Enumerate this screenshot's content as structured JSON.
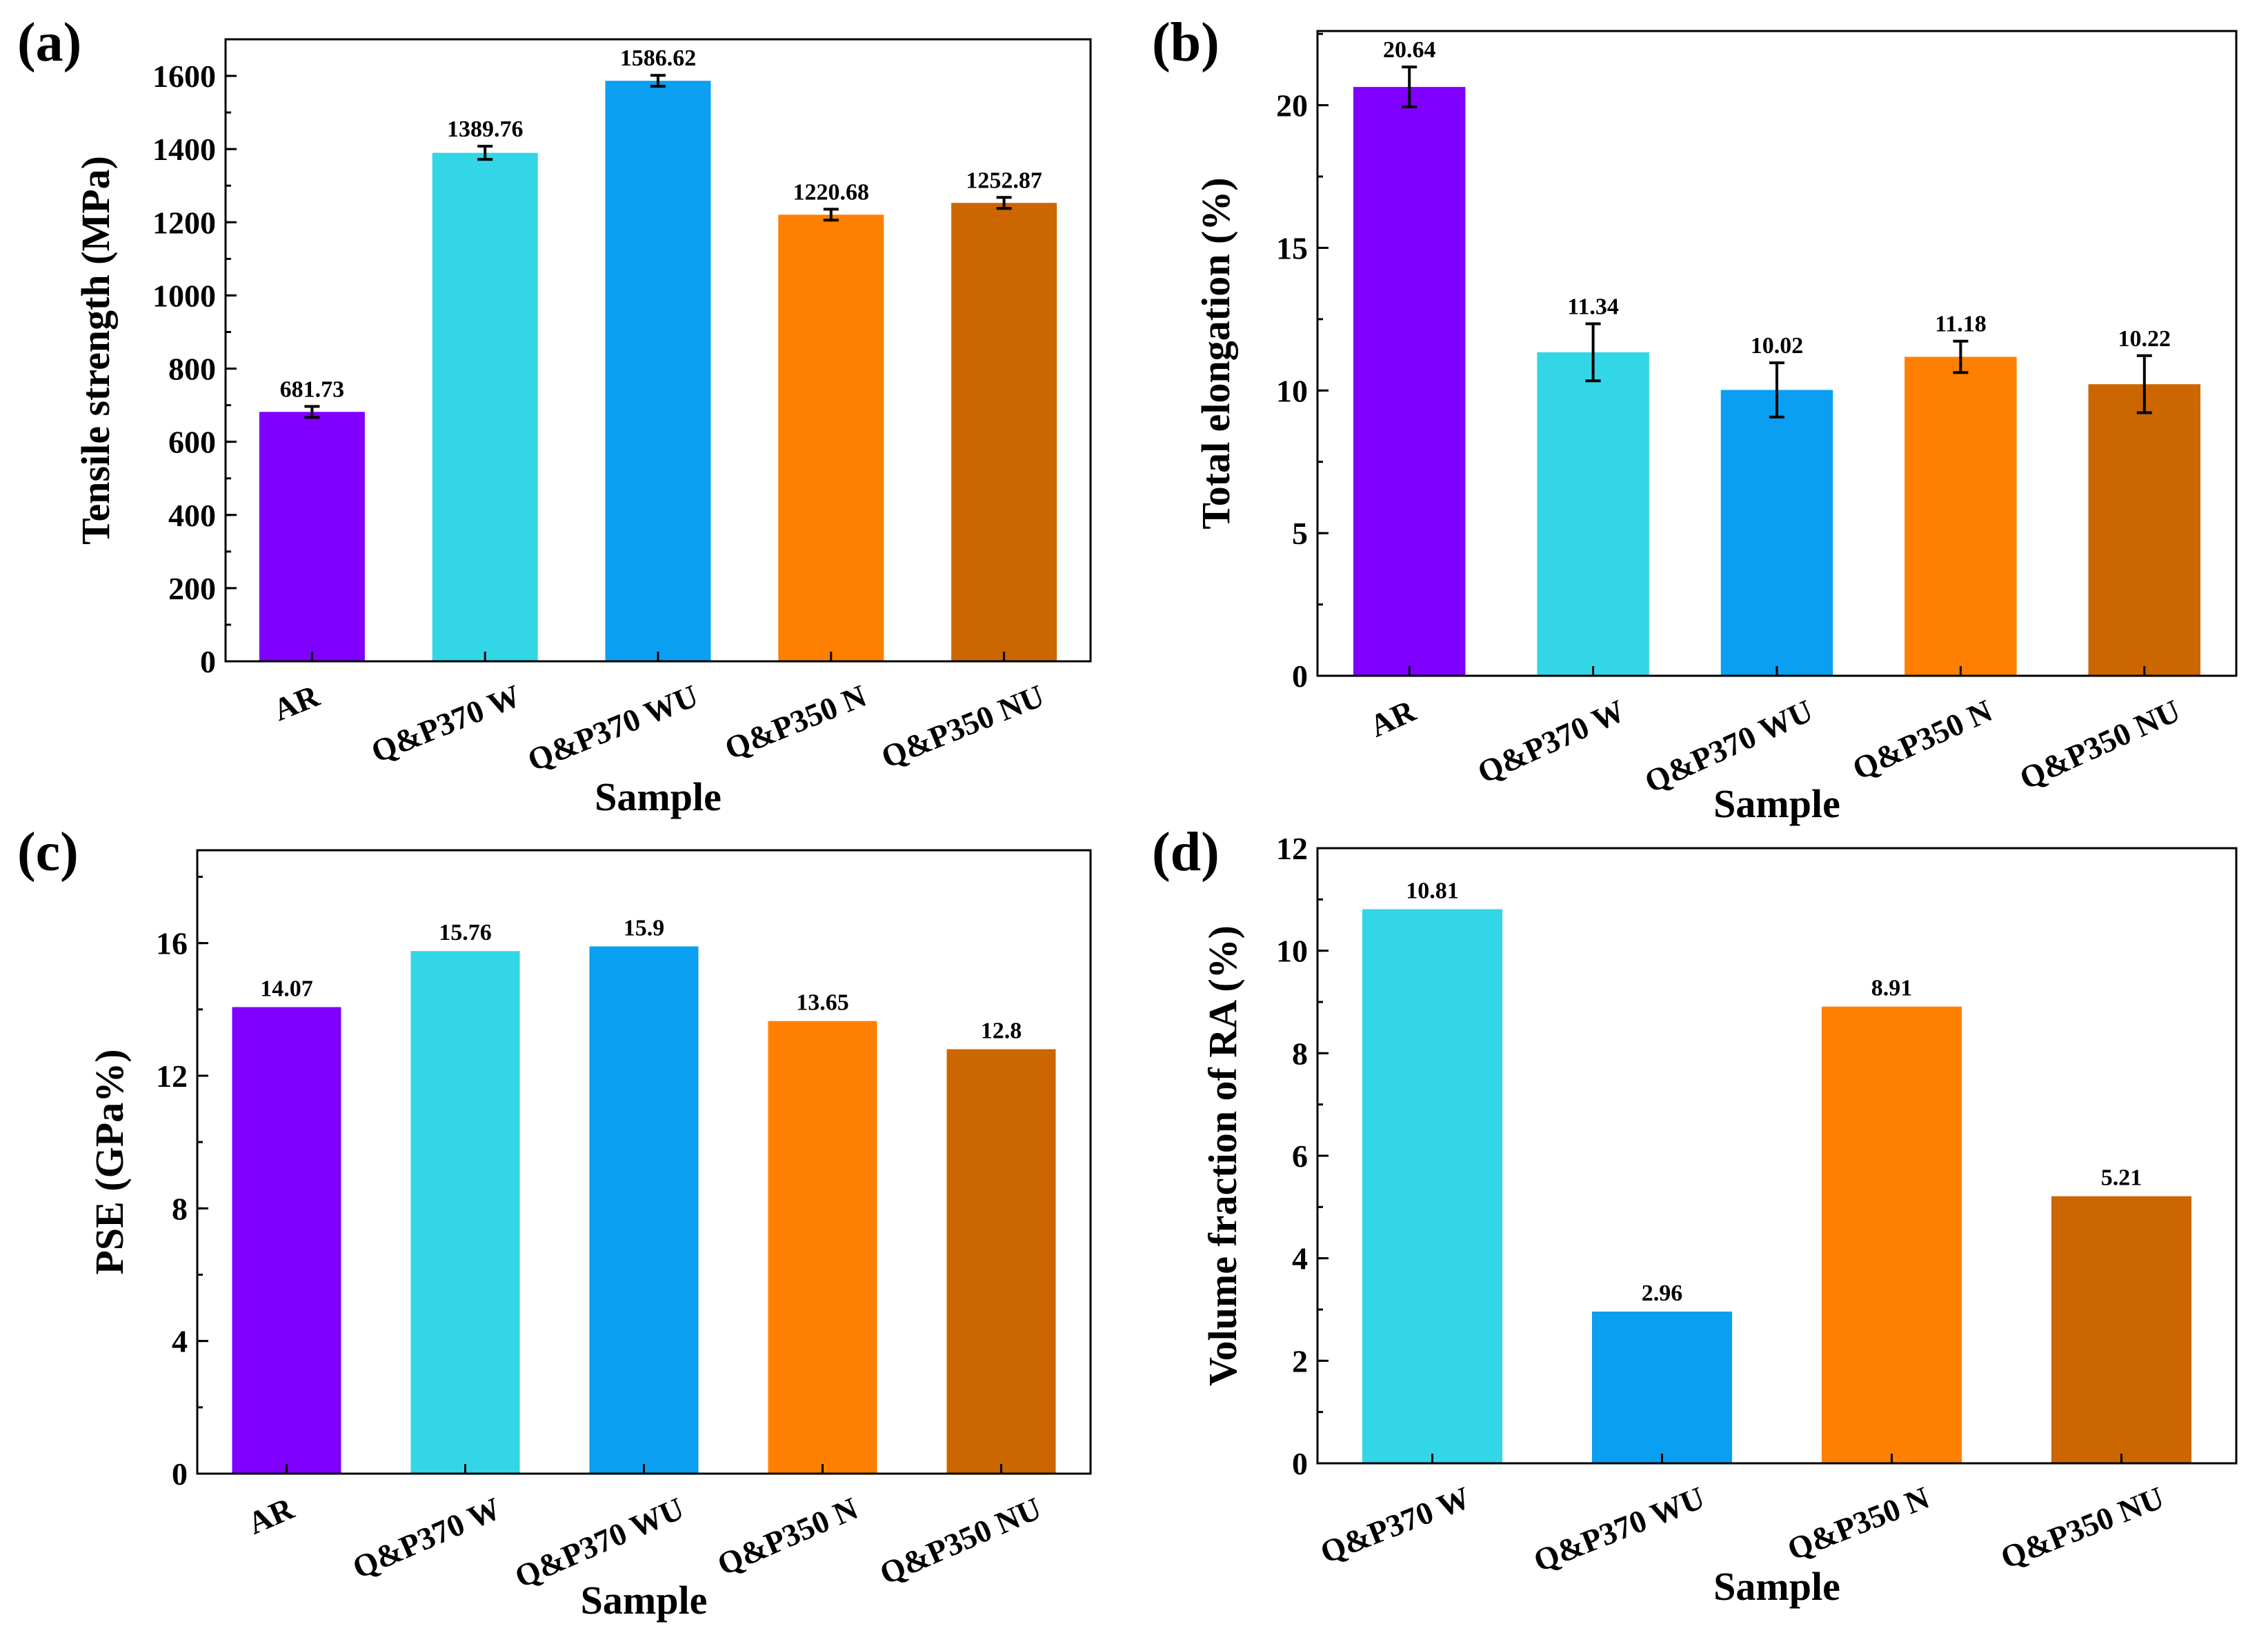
{
  "figure": {
    "panels": [
      "a",
      "b",
      "c",
      "d"
    ]
  },
  "chart_data": [
    {
      "id": "a",
      "panel_label": "(a)",
      "type": "bar",
      "title": "",
      "xlabel": "Sample",
      "ylabel": "Tensile strength (MPa)",
      "categories": [
        "AR",
        "Q&P370 W",
        "Q&P370 WU",
        "Q&P350 N",
        "Q&P350 NU"
      ],
      "values": [
        681.73,
        1389.76,
        1586.62,
        1220.68,
        1252.87
      ],
      "value_labels": [
        "681.73",
        "1389.76",
        "1586.62",
        "1220.68",
        "1252.87"
      ],
      "errors": [
        15,
        18,
        15,
        15,
        15
      ],
      "colors": [
        "#8000ff",
        "#33d6e6",
        "#0a9ff0",
        "#ff8000",
        "#cc6600"
      ],
      "ylim": [
        0,
        1700
      ],
      "yticks": [
        0,
        200,
        400,
        600,
        800,
        1000,
        1200,
        1400,
        1600
      ],
      "ytick_labels": [
        "0",
        "200",
        "400",
        "600",
        "800",
        "1000",
        "1200",
        "1400",
        "1600"
      ],
      "minor_step": 100,
      "grid": false
    },
    {
      "id": "b",
      "panel_label": "(b)",
      "type": "bar",
      "title": "",
      "xlabel": "Sample",
      "ylabel": "Total elongation (%)",
      "categories": [
        "AR",
        "Q&P370 W",
        "Q&P370 WU",
        "Q&P350 N",
        "Q&P350 NU"
      ],
      "values": [
        20.64,
        11.34,
        10.02,
        11.18,
        10.22
      ],
      "value_labels": [
        "20.64",
        "11.34",
        "10.02",
        "11.18",
        "10.22"
      ],
      "errors": [
        0.7,
        1.0,
        0.95,
        0.55,
        1.0
      ],
      "colors": [
        "#8000ff",
        "#33d6e6",
        "#0a9ff0",
        "#ff8000",
        "#cc6600"
      ],
      "ylim": [
        0,
        22.6
      ],
      "yticks": [
        0,
        5,
        10,
        15,
        20
      ],
      "ytick_labels": [
        "0",
        "5",
        "10",
        "15",
        "20"
      ],
      "minor_step": 2.5,
      "grid": false
    },
    {
      "id": "c",
      "panel_label": "(c)",
      "type": "bar",
      "title": "",
      "xlabel": "Sample",
      "ylabel": "PSE (GPa%)",
      "categories": [
        "AR",
        "Q&P370 W",
        "Q&P370 WU",
        "Q&P350 N",
        "Q&P350 NU"
      ],
      "values": [
        14.07,
        15.76,
        15.9,
        13.65,
        12.8
      ],
      "value_labels": [
        "14.07",
        "15.76",
        "15.9",
        "13.65",
        "12.8"
      ],
      "errors": [],
      "colors": [
        "#8000ff",
        "#33d6e6",
        "#0a9ff0",
        "#ff8000",
        "#cc6600"
      ],
      "ylim": [
        0,
        18.8
      ],
      "yticks": [
        0,
        4,
        8,
        12,
        16
      ],
      "ytick_labels": [
        "0",
        "4",
        "8",
        "12",
        "16"
      ],
      "minor_step": 2,
      "grid": false
    },
    {
      "id": "d",
      "panel_label": "(d)",
      "type": "bar",
      "title": "",
      "xlabel": "Sample",
      "ylabel": "Volume fraction of RA (%)",
      "categories": [
        "Q&P370 W",
        "Q&P370 WU",
        "Q&P350 N",
        "Q&P350 NU"
      ],
      "values": [
        10.81,
        2.96,
        8.91,
        5.21
      ],
      "value_labels": [
        "10.81",
        "2.96",
        "8.91",
        "5.21"
      ],
      "errors": [],
      "colors": [
        "#33d6e6",
        "#0a9ff0",
        "#ff8000",
        "#cc6600"
      ],
      "ylim": [
        0,
        12
      ],
      "yticks": [
        0,
        2,
        4,
        6,
        8,
        10,
        12
      ],
      "ytick_labels": [
        "0",
        "2",
        "4",
        "6",
        "8",
        "10",
        "12"
      ],
      "minor_step": 1,
      "grid": false
    }
  ]
}
